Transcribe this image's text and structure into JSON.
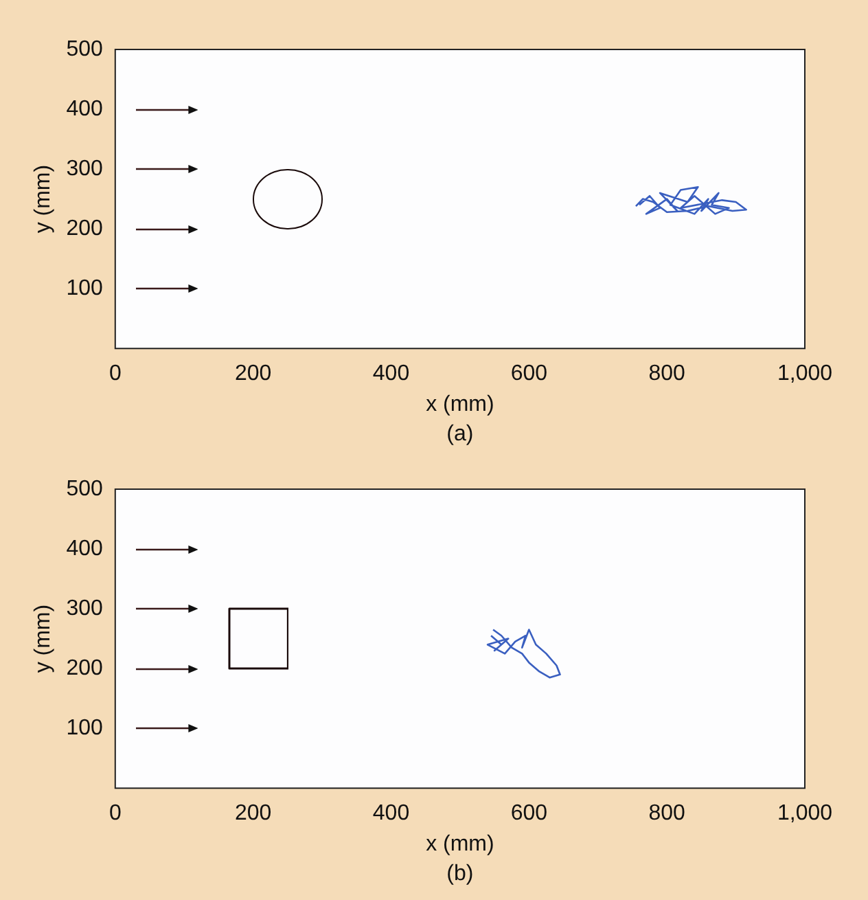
{
  "chart_data": [
    {
      "type": "line",
      "xlabel": "x (mm)",
      "ylabel": "y (mm)",
      "annotations": [
        "(a)"
      ],
      "xlim": [
        0,
        1000
      ],
      "ylim": [
        0,
        500
      ],
      "xticks": [
        0,
        200,
        400,
        600,
        800,
        {
          "value": 1000,
          "label": "1,000"
        }
      ],
      "yticks": [
        100,
        200,
        300,
        400,
        500
      ],
      "grid": false,
      "legend": false,
      "marker": "none",
      "series": [
        {
          "color": "#3a5fc0",
          "x": [
            760,
            775,
            790,
            770,
            800,
            815,
            790,
            830,
            845,
            820,
            805,
            840,
            860,
            850,
            875,
            865,
            890,
            870,
            840,
            820,
            880,
            900,
            915,
            895,
            860,
            830,
            800,
            780,
            765,
            755
          ],
          "values": [
            240,
            255,
            235,
            225,
            250,
            230,
            260,
            245,
            270,
            265,
            240,
            225,
            250,
            230,
            260,
            240,
            235,
            225,
            255,
            235,
            248,
            245,
            232,
            230,
            238,
            230,
            228,
            245,
            250,
            238
          ]
        }
      ]
    },
    {
      "type": "line",
      "xlabel": "x (mm)",
      "ylabel": "y (mm)",
      "annotations": [
        "(b)"
      ],
      "xlim": [
        0,
        1000
      ],
      "ylim": [
        0,
        500
      ],
      "xticks": [
        0,
        200,
        400,
        600,
        800,
        {
          "value": 1000,
          "label": "1,000"
        }
      ],
      "yticks": [
        100,
        200,
        300,
        400,
        500
      ],
      "grid": false,
      "legend": false,
      "marker": "none",
      "series": [
        {
          "color": "#3a5fc0",
          "x": [
            545,
            560,
            550,
            570,
            540,
            565,
            580,
            595,
            590,
            600,
            610,
            625,
            640,
            645,
            630,
            615,
            600,
            590,
            575,
            560,
            548
          ],
          "values": [
            255,
            240,
            230,
            250,
            240,
            225,
            245,
            255,
            235,
            265,
            240,
            225,
            205,
            190,
            185,
            195,
            210,
            225,
            235,
            255,
            265
          ]
        }
      ]
    }
  ]
}
